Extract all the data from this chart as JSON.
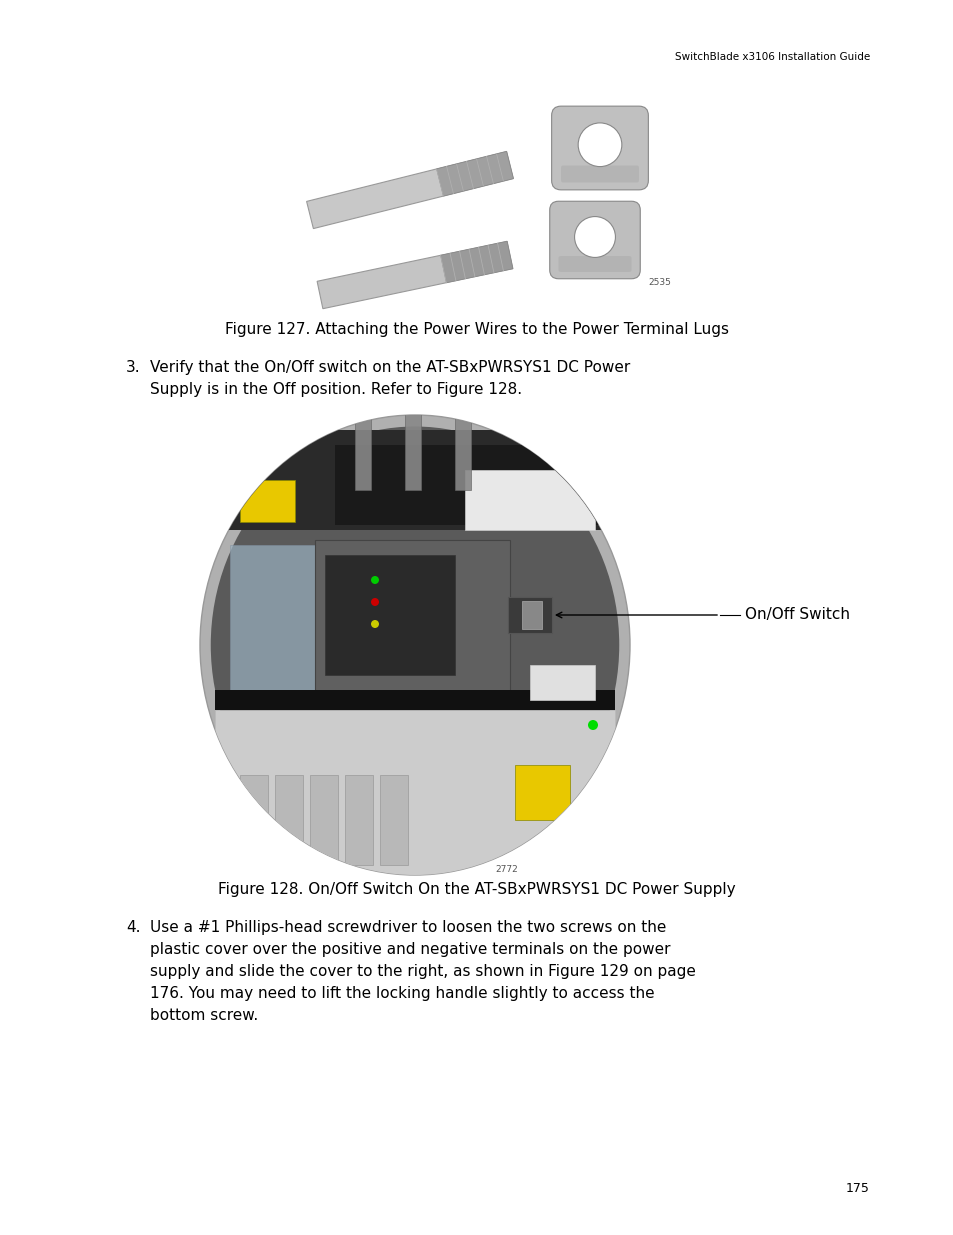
{
  "background_color": "#ffffff",
  "header_text": "SwitchBlade x3106 Installation Guide",
  "header_fontsize": 7.5,
  "page_number": "175",
  "fig1_caption": "Figure 127. Attaching the Power Wires to the Power Terminal Lugs",
  "step3_num": "3.",
  "step3_line1": "Verify that the On/Off switch on the AT-SBxPWRSYS1 DC Power",
  "step3_line2": "Supply is in the Off position. Refer to Figure 128.",
  "fig2_caption": "Figure 128. On/Off Switch On the AT-SBxPWRSYS1 DC Power Supply",
  "onoff_label": "On/Off Switch",
  "step4_num": "4.",
  "step4_line1": "Use a #1 Phillips-head screwdriver to loosen the two screws on the",
  "step4_line2": "plastic cover over the positive and negative terminals on the power",
  "step4_line3": "supply and slide the cover to the right, as shown in Figure 129 on page",
  "step4_line4": "176. You may need to lift the locking handle slightly to access the",
  "step4_line5": "bottom screw.",
  "label2535": "2535",
  "label2772": "2772",
  "body_fontsize": 11.0,
  "caption_fontsize": 11.0
}
